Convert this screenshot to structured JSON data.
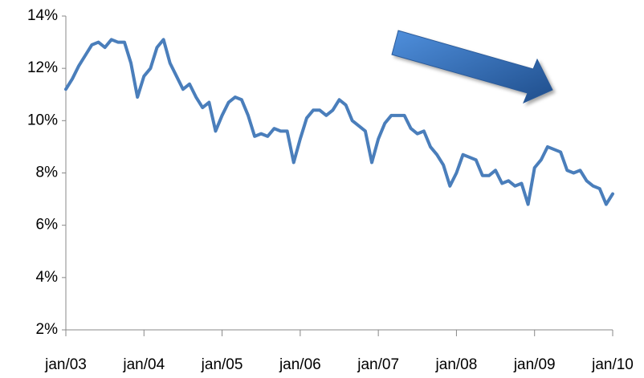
{
  "chart_data": {
    "type": "line",
    "color": "#4a7ebb",
    "categories": [
      "jan/03",
      null,
      null,
      null,
      null,
      null,
      null,
      null,
      null,
      null,
      null,
      null,
      "jan/04",
      null,
      null,
      null,
      null,
      null,
      null,
      null,
      null,
      null,
      null,
      null,
      "jan/05",
      null,
      null,
      null,
      null,
      null,
      null,
      null,
      null,
      null,
      null,
      null,
      "jan/06",
      null,
      null,
      null,
      null,
      null,
      null,
      null,
      null,
      null,
      null,
      null,
      "jan/07",
      null,
      null,
      null,
      null,
      null,
      null,
      null,
      null,
      null,
      null,
      null,
      "jan/08",
      null,
      null,
      null,
      null,
      null,
      null,
      null,
      null,
      null,
      null,
      null,
      "jan/09",
      null,
      null,
      null,
      null,
      null,
      null,
      null,
      null,
      null,
      null,
      null,
      "jan/10"
    ],
    "values": [
      11.2,
      11.6,
      12.1,
      12.5,
      12.9,
      13.0,
      12.8,
      13.1,
      13.0,
      13.0,
      12.2,
      10.9,
      11.7,
      12.0,
      12.8,
      13.1,
      12.2,
      11.7,
      11.2,
      11.4,
      10.9,
      10.5,
      10.7,
      9.6,
      10.2,
      10.7,
      10.9,
      10.8,
      10.2,
      9.4,
      9.5,
      9.4,
      9.7,
      9.6,
      9.6,
      8.4,
      9.3,
      10.1,
      10.4,
      10.4,
      10.2,
      10.4,
      10.8,
      10.6,
      10.0,
      9.8,
      9.6,
      8.4,
      9.3,
      9.9,
      10.2,
      10.2,
      10.2,
      9.7,
      9.5,
      9.6,
      9.0,
      8.7,
      8.3,
      7.5,
      8.0,
      8.7,
      8.6,
      8.5,
      7.9,
      7.9,
      8.1,
      7.6,
      7.7,
      7.5,
      7.6,
      6.8,
      8.2,
      8.5,
      9.0,
      8.9,
      8.8,
      8.1,
      8.0,
      8.1,
      7.7,
      7.5,
      7.4,
      6.8,
      7.2
    ],
    "ylim": [
      2,
      14
    ],
    "yticks": [
      {
        "value": 2,
        "label": "2%"
      },
      {
        "value": 4,
        "label": "4%"
      },
      {
        "value": 6,
        "label": "6%"
      },
      {
        "value": 8,
        "label": "8%"
      },
      {
        "value": 10,
        "label": "10%"
      },
      {
        "value": 12,
        "label": "12%"
      },
      {
        "value": 14,
        "label": "14%"
      }
    ],
    "grid": false
  }
}
